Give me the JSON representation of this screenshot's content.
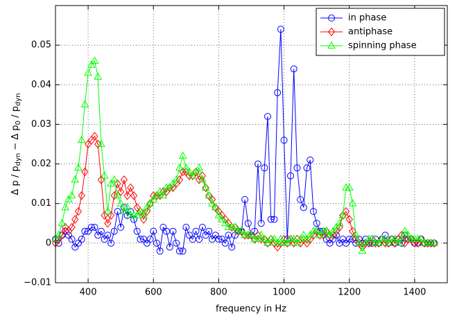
{
  "chart_data": {
    "type": "line",
    "xlabel": "frequency in Hz",
    "ylabel": [
      "Δ p / p",
      "dyn",
      " − Δ p",
      "0",
      " / p",
      "dyn"
    ],
    "x": [
      300,
      310,
      320,
      330,
      340,
      350,
      360,
      370,
      380,
      390,
      400,
      410,
      420,
      430,
      440,
      450,
      460,
      470,
      480,
      490,
      500,
      510,
      520,
      530,
      540,
      550,
      560,
      570,
      580,
      590,
      600,
      610,
      620,
      630,
      640,
      650,
      660,
      670,
      680,
      690,
      700,
      710,
      720,
      730,
      740,
      750,
      760,
      770,
      780,
      790,
      800,
      810,
      820,
      830,
      840,
      850,
      860,
      870,
      880,
      890,
      900,
      910,
      920,
      930,
      940,
      950,
      960,
      970,
      980,
      990,
      1000,
      1010,
      1020,
      1030,
      1040,
      1050,
      1060,
      1070,
      1080,
      1090,
      1100,
      1110,
      1120,
      1130,
      1140,
      1150,
      1160,
      1170,
      1180,
      1190,
      1200,
      1210,
      1220,
      1230,
      1240,
      1250,
      1260,
      1270,
      1280,
      1290,
      1300,
      1310,
      1320,
      1330,
      1340,
      1350,
      1360,
      1370,
      1380,
      1390,
      1400,
      1410,
      1420,
      1430,
      1440,
      1450,
      1460
    ],
    "series": [
      {
        "name": "in phase",
        "color": "#0000ff",
        "marker": "circle",
        "values": [
          0.001,
          0,
          0.002,
          0.003,
          0.002,
          0.001,
          -0.001,
          0,
          0.001,
          0.003,
          0.003,
          0.004,
          0.004,
          0.002,
          0.003,
          0.001,
          0.002,
          0,
          0.003,
          0.008,
          0.004,
          0.009,
          0.007,
          0.008,
          0.006,
          0.003,
          0.001,
          0.001,
          0,
          0.001,
          0.003,
          0,
          -0.002,
          0.004,
          0.003,
          -0.001,
          0.003,
          0,
          -0.002,
          -0.002,
          0.004,
          0.002,
          0.001,
          0.003,
          0.001,
          0.004,
          0.002,
          0.003,
          0.001,
          0.002,
          0.001,
          0.001,
          0,
          0.002,
          -0.001,
          0.002,
          0.003,
          0.003,
          0.011,
          0.005,
          0.002,
          0.003,
          0.02,
          0.005,
          0.019,
          0.032,
          0.006,
          0.006,
          0.038,
          0.054,
          0.026,
          0.001,
          0.017,
          0.044,
          0.019,
          0.011,
          0.009,
          0.019,
          0.021,
          0.008,
          0.005,
          0.003,
          0.003,
          0.001,
          0,
          0.001,
          0.002,
          0,
          0.001,
          0,
          0.001,
          0.001,
          0,
          0.001,
          0,
          0.001,
          0,
          0,
          0.001,
          0,
          0.001,
          0.002,
          0,
          0.001,
          0,
          0.001,
          0,
          0.002,
          0.001,
          0.001,
          0,
          0,
          0.001,
          0,
          0,
          0,
          0
        ]
      },
      {
        "name": "antiphase",
        "color": "#ff0000",
        "marker": "diamond",
        "values": [
          0,
          0.001,
          0.002,
          0.004,
          0.003,
          0.004,
          0.006,
          0.008,
          0.012,
          0.018,
          0.025,
          0.026,
          0.027,
          0.025,
          0.016,
          0.007,
          0.005,
          0.007,
          0.012,
          0.015,
          0.013,
          0.016,
          0.012,
          0.014,
          0.012,
          0.009,
          0.008,
          0.006,
          0.008,
          0.01,
          0.012,
          0.012,
          0.012,
          0.013,
          0.013,
          0.014,
          0.014,
          0.015,
          0.016,
          0.018,
          0.018,
          0.017,
          0.017,
          0.018,
          0.016,
          0.017,
          0.014,
          0.012,
          0.011,
          0.009,
          0.008,
          0.007,
          0.006,
          0.005,
          0.004,
          0.004,
          0.003,
          0.003,
          0.002,
          0.002,
          0.002,
          0.001,
          0.002,
          0.001,
          0.001,
          0,
          0.001,
          0,
          -0.001,
          0,
          0.001,
          0,
          0.001,
          0,
          0.001,
          0,
          0.001,
          0,
          0.001,
          0.002,
          0.003,
          0.002,
          0.002,
          0.003,
          0.002,
          0.002,
          0.003,
          0.004,
          0.007,
          0.008,
          0.006,
          0.003,
          0.001,
          0,
          -0.001,
          0,
          0,
          0.001,
          0,
          0,
          0.001,
          0,
          0,
          0.001,
          0,
          0.001,
          0.002,
          0,
          0.001,
          0.001,
          0,
          0,
          0.001,
          0,
          0,
          0,
          0
        ]
      },
      {
        "name": "spinning phase",
        "color": "#00ff00",
        "marker": "triangle",
        "values": [
          0.001,
          0.002,
          0.005,
          0.009,
          0.011,
          0.012,
          0.016,
          0.019,
          0.026,
          0.035,
          0.043,
          0.045,
          0.046,
          0.042,
          0.025,
          0.017,
          0.008,
          0.015,
          0.016,
          0.012,
          0.01,
          0.008,
          0.009,
          0.007,
          0.007,
          0.007,
          0.008,
          0.007,
          0.009,
          0.01,
          0.011,
          0.012,
          0.013,
          0.012,
          0.014,
          0.014,
          0.015,
          0.016,
          0.019,
          0.022,
          0.019,
          0.018,
          0.017,
          0.018,
          0.019,
          0.016,
          0.014,
          0.012,
          0.01,
          0.009,
          0.007,
          0.006,
          0.005,
          0.004,
          0.004,
          0.004,
          0.003,
          0.003,
          0.002,
          0.002,
          0.002,
          0.001,
          0.001,
          0.002,
          0.001,
          0,
          0.001,
          0.001,
          0,
          0.001,
          0,
          0,
          0.001,
          0.001,
          0,
          0.001,
          0.002,
          0.001,
          0.002,
          0.003,
          0.003,
          0.002,
          0.003,
          0.003,
          0.002,
          0.003,
          0.004,
          0.005,
          0.007,
          0.014,
          0.014,
          0.01,
          0.002,
          0,
          -0.002,
          0,
          0.001,
          0.001,
          0,
          0,
          0.001,
          0.001,
          0,
          0.001,
          0.001,
          0,
          0.001,
          0.003,
          0.002,
          0.001,
          0.001,
          0.001,
          0.001,
          0,
          0,
          0,
          0
        ]
      }
    ],
    "xlim": [
      300,
      1500
    ],
    "xticks": [
      400,
      600,
      800,
      1000,
      1200,
      1400
    ],
    "ylim": [
      -0.01,
      0.06
    ],
    "yticks": [
      {
        "value": -0.01,
        "label": "−0.01"
      },
      0,
      0.01,
      0.02,
      0.03,
      0.04,
      0.05
    ],
    "grid": true,
    "legend": "northeast"
  }
}
